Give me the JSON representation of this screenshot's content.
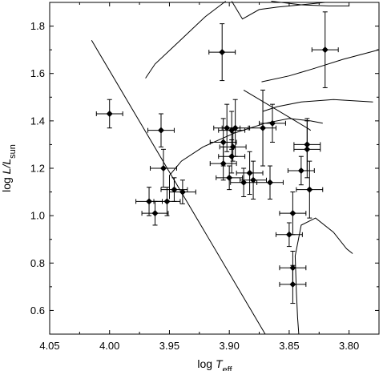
{
  "chart_data": {
    "type": "scatter",
    "title": "",
    "xlabel": {
      "main": "log ",
      "italic": "T",
      "sub": "eff"
    },
    "ylabel": {
      "main": "log ",
      "italic": "L/L",
      "sub": "sun"
    },
    "xlim": [
      4.05,
      3.775
    ],
    "ylim": [
      0.5,
      1.9
    ],
    "x_reversed": true,
    "grid": false,
    "xticks": [
      4.05,
      4.0,
      3.95,
      3.9,
      3.85,
      3.8
    ],
    "xtick_labels": [
      "4.05",
      "4.00",
      "3.95",
      "3.90",
      "3.85",
      "3.80"
    ],
    "yticks": [
      0.6,
      0.8,
      1.0,
      1.2,
      1.4,
      1.6,
      1.8
    ],
    "ytick_labels": [
      "0.6",
      "0.8",
      "1.0",
      "1.2",
      "1.4",
      "1.6",
      "1.8"
    ],
    "points": [
      {
        "x": 4.0,
        "y": 1.43,
        "xerr": 0.011,
        "yerr": 0.06
      },
      {
        "x": 3.967,
        "y": 1.06,
        "xerr": 0.011,
        "yerr": 0.06
      },
      {
        "x": 3.962,
        "y": 1.01,
        "xerr": 0.011,
        "yerr": 0.05
      },
      {
        "x": 3.957,
        "y": 1.36,
        "xerr": 0.011,
        "yerr": 0.07
      },
      {
        "x": 3.955,
        "y": 1.2,
        "xerr": 0.011,
        "yerr": 0.08
      },
      {
        "x": 3.952,
        "y": 1.06,
        "xerr": 0.011,
        "yerr": 0.06
      },
      {
        "x": 3.946,
        "y": 1.11,
        "xerr": 0.011,
        "yerr": 0.05
      },
      {
        "x": 3.939,
        "y": 1.1,
        "xerr": 0.011,
        "yerr": 0.05
      },
      {
        "x": 3.906,
        "y": 1.69,
        "xerr": 0.011,
        "yerr": 0.12
      },
      {
        "x": 3.905,
        "y": 1.31,
        "xerr": 0.011,
        "yerr": 0.1
      },
      {
        "x": 3.905,
        "y": 1.22,
        "xerr": 0.011,
        "yerr": 0.07
      },
      {
        "x": 3.902,
        "y": 1.37,
        "xerr": 0.011,
        "yerr": 0.1
      },
      {
        "x": 3.9,
        "y": 1.16,
        "xerr": 0.011,
        "yerr": 0.05
      },
      {
        "x": 3.898,
        "y": 1.36,
        "xerr": 0.011,
        "yerr": 0.08
      },
      {
        "x": 3.898,
        "y": 1.25,
        "xerr": 0.011,
        "yerr": 0.07
      },
      {
        "x": 3.897,
        "y": 1.29,
        "xerr": 0.011,
        "yerr": 0.06
      },
      {
        "x": 3.895,
        "y": 1.37,
        "xerr": 0.011,
        "yerr": 0.12
      },
      {
        "x": 3.888,
        "y": 1.14,
        "xerr": 0.011,
        "yerr": 0.06
      },
      {
        "x": 3.883,
        "y": 1.18,
        "xerr": 0.011,
        "yerr": 0.09
      },
      {
        "x": 3.88,
        "y": 1.15,
        "xerr": 0.011,
        "yerr": 0.08
      },
      {
        "x": 3.872,
        "y": 1.37,
        "xerr": 0.011,
        "yerr": 0.16
      },
      {
        "x": 3.866,
        "y": 1.14,
        "xerr": 0.011,
        "yerr": 0.07
      },
      {
        "x": 3.864,
        "y": 1.39,
        "xerr": 0.011,
        "yerr": 0.08
      },
      {
        "x": 3.85,
        "y": 0.92,
        "xerr": 0.011,
        "yerr": 0.05
      },
      {
        "x": 3.847,
        "y": 1.01,
        "xerr": 0.011,
        "yerr": 0.09
      },
      {
        "x": 3.847,
        "y": 0.78,
        "xerr": 0.011,
        "yerr": 0.07
      },
      {
        "x": 3.847,
        "y": 0.71,
        "xerr": 0.011,
        "yerr": 0.08
      },
      {
        "x": 3.84,
        "y": 1.19,
        "xerr": 0.011,
        "yerr": 0.06
      },
      {
        "x": 3.835,
        "y": 1.3,
        "xerr": 0.011,
        "yerr": 0.11
      },
      {
        "x": 3.835,
        "y": 1.28,
        "xerr": 0.011,
        "yerr": 0.12
      },
      {
        "x": 3.833,
        "y": 1.11,
        "xerr": 0.011,
        "yerr": 0.12
      },
      {
        "x": 3.82,
        "y": 1.7,
        "xerr": 0.011,
        "yerr": 0.16
      }
    ],
    "curves": [
      [
        [
          4.015,
          1.74
        ],
        [
          3.87,
          0.5
        ]
      ],
      [
        [
          3.97,
          1.58
        ],
        [
          3.962,
          1.64
        ],
        [
          3.943,
          1.73
        ],
        [
          3.92,
          1.84
        ],
        [
          3.903,
          1.905
        ]
      ],
      [
        [
          3.95,
          1.07
        ],
        [
          3.95,
          1.17
        ],
        [
          3.94,
          1.23
        ],
        [
          3.922,
          1.29
        ],
        [
          3.895,
          1.35
        ],
        [
          3.87,
          1.39
        ],
        [
          3.85,
          1.41
        ],
        [
          3.832,
          1.4
        ],
        [
          3.822,
          1.39
        ]
      ],
      [
        [
          3.888,
          1.53
        ],
        [
          3.835,
          1.37
        ],
        [
          3.832,
          1.36
        ]
      ],
      [
        [
          3.872,
          1.44
        ],
        [
          3.86,
          1.46
        ],
        [
          3.84,
          1.48
        ],
        [
          3.813,
          1.49
        ],
        [
          3.78,
          1.48
        ]
      ],
      [
        [
          3.873,
          1.565
        ],
        [
          3.85,
          1.59
        ],
        [
          3.83,
          1.62
        ],
        [
          3.805,
          1.66
        ],
        [
          3.775,
          1.7
        ]
      ],
      [
        [
          3.898,
          1.905
        ],
        [
          3.889,
          1.83
        ],
        [
          3.875,
          1.87
        ],
        [
          3.86,
          1.88
        ],
        [
          3.84,
          1.89
        ],
        [
          3.82,
          1.9
        ]
      ],
      [
        [
          3.865,
          1.905
        ],
        [
          3.84,
          1.89
        ],
        [
          3.817,
          1.885
        ],
        [
          3.8,
          1.885
        ]
      ],
      [
        [
          3.842,
          0.5
        ],
        [
          3.843,
          0.57
        ],
        [
          3.844,
          0.68
        ],
        [
          3.845,
          0.83
        ],
        [
          3.84,
          0.96
        ],
        [
          3.828,
          0.99
        ],
        [
          3.813,
          0.93
        ],
        [
          3.802,
          0.86
        ],
        [
          3.797,
          0.84
        ]
      ]
    ]
  }
}
